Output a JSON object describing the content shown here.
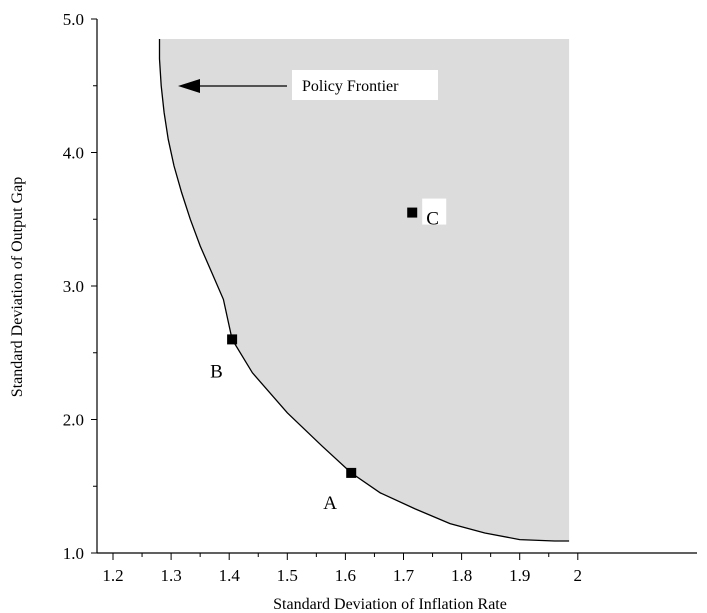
{
  "chart_data": {
    "type": "scatter",
    "title": "",
    "xlabel": "Standard Deviation of Inflation Rate",
    "ylabel": "Standard Deviation of Output Gap",
    "xlim": [
      1.15,
      2.0
    ],
    "ylim": [
      1.0,
      5.0
    ],
    "x_ticks": [
      "1.2",
      "1.3",
      "1.4",
      "1.5",
      "1.6",
      "1.7",
      "1.8",
      "1.9",
      "2"
    ],
    "y_ticks": [
      "1.0",
      "2.0",
      "3.0",
      "4.0",
      "5.0"
    ],
    "frontier": {
      "label": "Policy Frontier",
      "points": [
        [
          1.28,
          4.85
        ],
        [
          1.28,
          4.7
        ],
        [
          1.283,
          4.5
        ],
        [
          1.288,
          4.3
        ],
        [
          1.295,
          4.1
        ],
        [
          1.305,
          3.9
        ],
        [
          1.318,
          3.7
        ],
        [
          1.333,
          3.5
        ],
        [
          1.35,
          3.3
        ],
        [
          1.37,
          3.1
        ],
        [
          1.39,
          2.9
        ],
        [
          1.405,
          2.6
        ],
        [
          1.44,
          2.35
        ],
        [
          1.5,
          2.05
        ],
        [
          1.56,
          1.8
        ],
        [
          1.61,
          1.6
        ],
        [
          1.66,
          1.45
        ],
        [
          1.72,
          1.33
        ],
        [
          1.78,
          1.22
        ],
        [
          1.84,
          1.15
        ],
        [
          1.9,
          1.1
        ],
        [
          1.96,
          1.09
        ],
        [
          1.985,
          1.09
        ]
      ]
    },
    "region_right_x": 1.985,
    "region_top_y": 4.85,
    "region_color": "#dcdcdc",
    "points": [
      {
        "label": "A",
        "x": 1.61,
        "y": 1.6
      },
      {
        "label": "B",
        "x": 1.405,
        "y": 2.6
      },
      {
        "label": "C",
        "x": 1.715,
        "y": 3.55
      }
    ]
  }
}
